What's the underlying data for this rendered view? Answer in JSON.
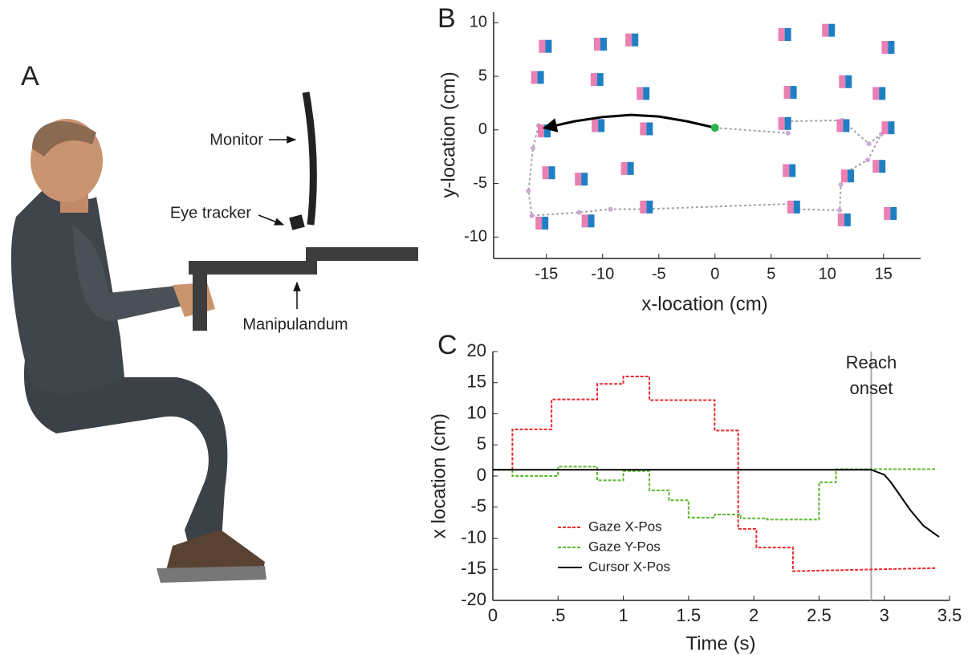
{
  "panel_a": {
    "letter": "A",
    "labels": {
      "monitor": "Monitor",
      "eye_tracker": "Eye tracker",
      "manipulandum": "Manipulandum"
    }
  },
  "chart_data": [
    {
      "type": "scatter",
      "letter": "B",
      "xlabel": "x-location (cm)",
      "ylabel": "y-location (cm)",
      "xlim": [
        -19.7,
        18.3
      ],
      "ylim": [
        -12,
        11
      ],
      "xticks": [
        -15,
        -10,
        -5,
        0,
        5,
        10,
        15
      ],
      "yticks": [
        -10,
        -5,
        0,
        5,
        10
      ],
      "grid": false,
      "targets": {
        "colors": [
          "#e97fb3",
          "#1f7fc4"
        ],
        "x": [
          -15.1,
          -10.2,
          -7.4,
          6.2,
          10.1,
          15.4,
          -15.8,
          -10.5,
          -6.4,
          6.7,
          11.6,
          14.6,
          -15.2,
          -10.4,
          -6.1,
          6.2,
          11.4,
          15.4,
          -14.8,
          -11.9,
          -7.8,
          6.6,
          11.8,
          14.6,
          -15.4,
          -11.3,
          -6.1,
          7.0,
          11.5,
          15.6
        ],
        "y": [
          7.8,
          8.0,
          8.4,
          8.9,
          9.3,
          7.7,
          4.9,
          4.7,
          3.4,
          3.5,
          4.5,
          3.4,
          -0.1,
          0.4,
          0.1,
          0.6,
          0.4,
          0.2,
          -4.0,
          -4.6,
          -3.6,
          -3.8,
          -4.3,
          -3.4,
          -8.7,
          -8.5,
          -7.2,
          -7.2,
          -8.4,
          -7.8
        ]
      },
      "cursor_path": {
        "color": "#000000",
        "start_color": "#2bb34a",
        "x": [
          0,
          -2.5,
          -5,
          -7.5,
          -10,
          -12.5,
          -15.1
        ],
        "y": [
          0.2,
          0.8,
          1.25,
          1.4,
          1.2,
          0.8,
          0.2
        ]
      },
      "gaze_path": {
        "color": "#a3a3a3",
        "point_color": "#c9a9d6",
        "x": [
          0,
          6.5,
          6.6,
          11.3,
          13.7,
          14.8,
          13.6,
          11.4,
          11.2,
          11.1,
          7.0,
          6.8,
          -6.3,
          -9.3,
          -12.1,
          -16.3,
          -16.6,
          -16.2,
          -15.7,
          -15.3
        ],
        "y": [
          0.2,
          -0.3,
          0.8,
          0.9,
          -1.3,
          -0.4,
          -2.8,
          -4.1,
          -5.1,
          -7.5,
          -7.4,
          -6.9,
          -7.4,
          -7.4,
          -7.7,
          -8.0,
          -5.7,
          -1.7,
          0.4,
          0.2
        ]
      }
    },
    {
      "type": "line",
      "letter": "C",
      "xlabel": "Time (s)",
      "ylabel": "x location (cm)",
      "xlim": [
        0,
        3.5
      ],
      "ylim": [
        -20,
        20
      ],
      "xticks": [
        0,
        {
          "value": 0.5,
          "label": ".5"
        },
        1,
        1.5,
        2,
        2.5,
        3,
        3.5
      ],
      "yticks": [
        -20,
        -15,
        -10,
        -5,
        0,
        5,
        10,
        15,
        20
      ],
      "grid": false,
      "legend": "lower left",
      "annotation": {
        "lines": [
          "Reach",
          "onset"
        ],
        "x": 2.9,
        "color": "#aaaaaa"
      },
      "series": [
        {
          "name": "Gaze X-Pos",
          "color": "#e8282b",
          "dashed": true,
          "x": [
            0,
            0.15,
            0.15,
            0.45,
            0.45,
            0.8,
            0.8,
            1.0,
            1.0,
            1.2,
            1.2,
            1.7,
            1.7,
            1.88,
            1.88,
            2.02,
            2.02,
            2.3,
            2.3,
            3.4
          ],
          "values": [
            1,
            1,
            7.5,
            7.5,
            12.3,
            12.3,
            14.8,
            14.8,
            16,
            16,
            12.2,
            12.2,
            7.3,
            7.3,
            -8.5,
            -8.5,
            -11.5,
            -11.5,
            -15.3,
            -14.8
          ]
        },
        {
          "name": "Gaze Y-Pos",
          "color": "#5cb82e",
          "dashed": true,
          "x": [
            0,
            0.15,
            0.15,
            0.5,
            0.5,
            0.8,
            0.8,
            1.0,
            1.0,
            1.2,
            1.2,
            1.35,
            1.35,
            1.5,
            1.5,
            1.7,
            1.7,
            1.9,
            1.9,
            2.1,
            2.1,
            2.5,
            2.5,
            2.63,
            2.63,
            3.4
          ],
          "values": [
            1,
            1,
            0,
            0,
            1.5,
            1.5,
            -0.7,
            -0.7,
            0.8,
            0.8,
            -2.3,
            -2.3,
            -3.9,
            -3.9,
            -6.7,
            -6.7,
            -6.2,
            -6.2,
            -6.8,
            -6.8,
            -7.0,
            -7.0,
            -1,
            -1,
            1.1,
            1.1
          ]
        },
        {
          "name": "Cursor X-Pos",
          "color": "#000000",
          "dashed": false,
          "x": [
            0,
            2.9,
            3.0,
            3.05,
            3.1,
            3.2,
            3.3,
            3.42
          ],
          "values": [
            1,
            1,
            0.2,
            -1,
            -2.5,
            -5.5,
            -8,
            -9.8
          ]
        }
      ]
    }
  ]
}
